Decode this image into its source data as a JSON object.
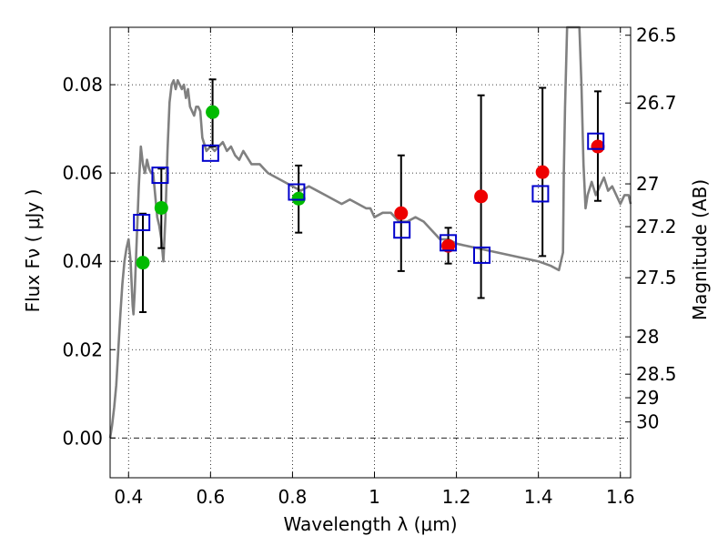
{
  "chart_data": {
    "type": "scatter",
    "xlabel": "Wavelength  λ (μm)",
    "ylabel": "Flux  Fν ( μJy )",
    "y2label": "Magnitude (AB)",
    "xlim": [
      0.355,
      1.625
    ],
    "ylim": [
      -0.009,
      0.093
    ],
    "grid": true,
    "x_ticks": [
      0.4,
      0.6,
      0.8,
      1.0,
      1.2,
      1.4,
      1.6
    ],
    "x_tick_labels": [
      "0.4",
      "0.6",
      "0.8",
      "1",
      "1.2",
      "1.4",
      "1.6"
    ],
    "y_ticks": [
      0.0,
      0.02,
      0.04,
      0.06,
      0.08
    ],
    "y_tick_labels": [
      "0.00",
      "0.02",
      "0.04",
      "0.06",
      "0.08"
    ],
    "mag_ticks": [
      26.5,
      26.7,
      27,
      27.2,
      27.5,
      28,
      28.5,
      29,
      30
    ],
    "mag_tick_labels": [
      "26.5",
      "26.7",
      "27",
      "27.2",
      "27.5",
      "28",
      "28.5",
      "29",
      "30"
    ],
    "zero_line": 0,
    "colors": {
      "model": "#808080",
      "green": "#00bb00",
      "red": "#ee0000",
      "square": "#0000cc",
      "errorbar": "#000000"
    },
    "model_spectrum": {
      "name": "SED model",
      "x": [
        0.355,
        0.36,
        0.365,
        0.37,
        0.375,
        0.38,
        0.385,
        0.39,
        0.395,
        0.4,
        0.405,
        0.41,
        0.412,
        0.415,
        0.42,
        0.425,
        0.43,
        0.435,
        0.44,
        0.445,
        0.45,
        0.455,
        0.46,
        0.465,
        0.47,
        0.475,
        0.48,
        0.485,
        0.49,
        0.495,
        0.5,
        0.505,
        0.51,
        0.515,
        0.52,
        0.525,
        0.53,
        0.535,
        0.54,
        0.545,
        0.55,
        0.56,
        0.565,
        0.57,
        0.575,
        0.58,
        0.59,
        0.6,
        0.61,
        0.62,
        0.63,
        0.64,
        0.65,
        0.66,
        0.67,
        0.68,
        0.7,
        0.72,
        0.74,
        0.76,
        0.78,
        0.8,
        0.82,
        0.84,
        0.86,
        0.88,
        0.9,
        0.92,
        0.94,
        0.96,
        0.98,
        0.99,
        1.0,
        1.02,
        1.04,
        1.06,
        1.08,
        1.1,
        1.12,
        1.14,
        1.16,
        1.18,
        1.2,
        1.25,
        1.3,
        1.35,
        1.4,
        1.43,
        1.45,
        1.46,
        1.462,
        1.465,
        1.47,
        1.475,
        1.48,
        1.485,
        1.49,
        1.5,
        1.505,
        1.51,
        1.515,
        1.52,
        1.53,
        1.54,
        1.55,
        1.56,
        1.57,
        1.58,
        1.59,
        1.6,
        1.61,
        1.62,
        1.625
      ],
      "y": [
        0.0,
        0.003,
        0.007,
        0.012,
        0.02,
        0.028,
        0.035,
        0.04,
        0.043,
        0.045,
        0.04,
        0.03,
        0.028,
        0.033,
        0.045,
        0.057,
        0.066,
        0.062,
        0.06,
        0.063,
        0.061,
        0.06,
        0.06,
        0.055,
        0.05,
        0.048,
        0.045,
        0.04,
        0.05,
        0.065,
        0.076,
        0.08,
        0.081,
        0.079,
        0.081,
        0.08,
        0.079,
        0.08,
        0.077,
        0.079,
        0.075,
        0.073,
        0.075,
        0.075,
        0.074,
        0.068,
        0.065,
        0.066,
        0.065,
        0.066,
        0.067,
        0.065,
        0.066,
        0.064,
        0.063,
        0.065,
        0.062,
        0.062,
        0.06,
        0.059,
        0.058,
        0.057,
        0.056,
        0.057,
        0.056,
        0.055,
        0.054,
        0.053,
        0.054,
        0.053,
        0.052,
        0.052,
        0.05,
        0.051,
        0.051,
        0.049,
        0.049,
        0.05,
        0.049,
        0.047,
        0.045,
        0.045,
        0.044,
        0.043,
        0.042,
        0.041,
        0.04,
        0.039,
        0.038,
        0.042,
        0.06,
        0.075,
        0.093,
        0.093,
        0.093,
        0.093,
        0.093,
        0.093,
        0.08,
        0.062,
        0.052,
        0.055,
        0.058,
        0.055,
        0.057,
        0.059,
        0.056,
        0.057,
        0.055,
        0.053,
        0.055,
        0.055,
        0.053
      ]
    },
    "series": [
      {
        "name": "green points",
        "marker": "circle",
        "x": [
          0.435,
          0.48,
          0.605,
          0.815
        ],
        "y": [
          0.0397,
          0.0521,
          0.0738,
          0.0542
        ]
      },
      {
        "name": "red points",
        "marker": "circle",
        "x": [
          1.065,
          1.18,
          1.26,
          1.41,
          1.545
        ],
        "y": [
          0.0509,
          0.0435,
          0.0547,
          0.0602,
          0.066
        ]
      },
      {
        "name": "model photometry",
        "marker": "square-open",
        "x": [
          0.432,
          0.477,
          0.6,
          0.81,
          1.067,
          1.18,
          1.262,
          1.405,
          1.54
        ],
        "y": [
          0.0488,
          0.0595,
          0.0645,
          0.0557,
          0.0471,
          0.0442,
          0.0414,
          0.0553,
          0.0672
        ]
      }
    ],
    "error_bars": [
      {
        "x": 0.435,
        "y": 0.0397,
        "low": 0.0285,
        "high": 0.0508
      },
      {
        "x": 0.48,
        "y": 0.0521,
        "low": 0.043,
        "high": 0.061
      },
      {
        "x": 0.605,
        "y": 0.0738,
        "low": 0.066,
        "high": 0.0812
      },
      {
        "x": 0.815,
        "y": 0.0542,
        "low": 0.0465,
        "high": 0.0617
      },
      {
        "x": 1.065,
        "y": 0.0509,
        "low": 0.0378,
        "high": 0.064
      },
      {
        "x": 1.18,
        "y": 0.0435,
        "low": 0.0395,
        "high": 0.0476
      },
      {
        "x": 1.26,
        "y": 0.0547,
        "low": 0.0317,
        "high": 0.0776
      },
      {
        "x": 1.41,
        "y": 0.0602,
        "low": 0.0412,
        "high": 0.0793
      },
      {
        "x": 1.545,
        "y": 0.066,
        "low": 0.0537,
        "high": 0.0785
      }
    ]
  }
}
